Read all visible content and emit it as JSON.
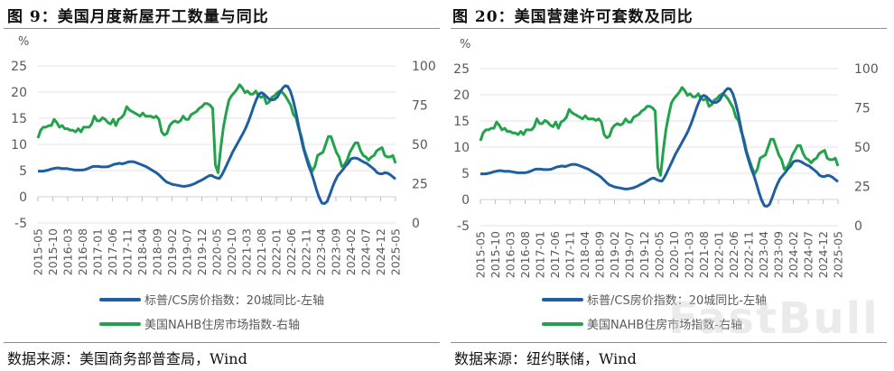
{
  "figures": [
    {
      "title": "图 9：美国月度新屋开工数量与同比",
      "source": "数据来源：美国商务部普查局，Wind"
    },
    {
      "title": "图 20：美国营建许可套数及同比",
      "source": "数据来源：纽约联储，Wind"
    }
  ],
  "legend": {
    "series_blue": "标普/CS房价指数：20城同比-左轴",
    "series_green": "美国NAHB住房市场指数-右轴"
  },
  "axes": {
    "left_unit": "%",
    "left_ticks": [
      "25",
      "20",
      "15",
      "10",
      "5",
      "0",
      "-5"
    ],
    "right_ticks": [
      "100",
      "75",
      "50",
      "25",
      "0"
    ],
    "x_ticks": [
      "2015-05",
      "2015-10",
      "2016-03",
      "2016-08",
      "2017-01",
      "2017-06",
      "2017-11",
      "2018-04",
      "2018-09",
      "2019-02",
      "2019-07",
      "2019-12",
      "2020-05",
      "2020-10",
      "2021-03",
      "2021-08",
      "2022-01",
      "2022-06",
      "2022-11",
      "2023-04",
      "2023-09",
      "2024-02",
      "2024-07",
      "2024-12",
      "2025-05"
    ]
  },
  "colors": {
    "blue": "#1f5fa0",
    "green": "#22a24a",
    "grid": "#e3e3e3",
    "tick_text": "#595959"
  },
  "watermark": "FastBull",
  "chart_data": [
    {
      "type": "line",
      "title": "图 9：美国月度新屋开工数量与同比",
      "xlabel": "",
      "ylabel": "%",
      "ylim": [
        -5,
        25
      ],
      "y2lim": [
        0,
        100
      ],
      "grid": true,
      "legend_position": "bottom",
      "categories": [
        "2015-05",
        "2015-10",
        "2016-03",
        "2016-08",
        "2017-01",
        "2017-06",
        "2017-11",
        "2018-04",
        "2018-09",
        "2019-02",
        "2019-07",
        "2019-12",
        "2020-05",
        "2020-10",
        "2021-03",
        "2021-08",
        "2022-01",
        "2022-06",
        "2022-11",
        "2023-04",
        "2023-09",
        "2024-02",
        "2024-07",
        "2024-12",
        "2025-05"
      ],
      "series": [
        {
          "name": "标普/CS房价指数：20城同比-左轴",
          "axis": "left",
          "values": [
            5.0,
            5.4,
            5.4,
            5.1,
            5.6,
            5.7,
            6.3,
            6.6,
            5.5,
            3.6,
            2.1,
            2.6,
            3.8,
            7.0,
            13.0,
            19.7,
            18.6,
            19.0,
            4.6,
            -1.1,
            3.9,
            6.6,
            5.9,
            4.5,
            3.4
          ]
        },
        {
          "name": "美国NAHB住房市场指数-右轴",
          "axis": "right",
          "values": [
            54,
            64,
            58,
            59,
            67,
            67,
            70,
            68,
            67,
            62,
            65,
            76,
            37,
            85,
            82,
            75,
            83,
            67,
            33,
            45,
            45,
            48,
            42,
            46,
            34
          ]
        }
      ]
    },
    {
      "type": "line",
      "title": "图 20：美国营建许可套数及同比",
      "xlabel": "",
      "ylabel": "%",
      "ylim": [
        -5,
        25
      ],
      "y2lim": [
        0,
        100
      ],
      "grid": true,
      "legend_position": "bottom",
      "categories": [
        "2015-05",
        "2015-10",
        "2016-03",
        "2016-08",
        "2017-01",
        "2017-06",
        "2017-11",
        "2018-04",
        "2018-09",
        "2019-02",
        "2019-07",
        "2019-12",
        "2020-05",
        "2020-10",
        "2021-03",
        "2021-08",
        "2022-01",
        "2022-06",
        "2022-11",
        "2023-04",
        "2023-09",
        "2024-02",
        "2024-07",
        "2024-12",
        "2025-05"
      ],
      "series": [
        {
          "name": "标普/CS房价指数：20城同比-左轴",
          "axis": "left",
          "values": [
            5.0,
            5.4,
            5.4,
            5.1,
            5.6,
            5.7,
            6.3,
            6.6,
            5.5,
            3.6,
            2.1,
            2.6,
            3.8,
            7.0,
            13.0,
            19.7,
            18.6,
            19.0,
            4.6,
            -1.1,
            3.9,
            6.6,
            5.9,
            4.5,
            3.4
          ]
        },
        {
          "name": "美国NAHB住房市场指数-右轴",
          "axis": "right",
          "values": [
            54,
            64,
            58,
            59,
            67,
            67,
            70,
            68,
            67,
            62,
            65,
            76,
            37,
            85,
            82,
            75,
            83,
            67,
            33,
            45,
            45,
            48,
            42,
            46,
            34
          ]
        }
      ]
    }
  ],
  "monthly": {
    "blue": [
      4.9,
      4.9,
      4.9,
      5.0,
      5.1,
      5.3,
      5.4,
      5.5,
      5.5,
      5.4,
      5.4,
      5.4,
      5.3,
      5.2,
      5.1,
      5.1,
      5.1,
      5.1,
      5.2,
      5.4,
      5.6,
      5.8,
      5.8,
      5.8,
      5.7,
      5.7,
      5.7,
      5.8,
      6.0,
      6.2,
      6.3,
      6.4,
      6.3,
      6.4,
      6.6,
      6.7,
      6.7,
      6.6,
      6.4,
      6.2,
      6.0,
      5.8,
      5.5,
      5.2,
      4.9,
      4.6,
      4.2,
      3.7,
      3.2,
      2.8,
      2.6,
      2.4,
      2.3,
      2.2,
      2.1,
      2.0,
      2.0,
      2.1,
      2.2,
      2.4,
      2.6,
      2.9,
      3.1,
      3.4,
      3.7,
      4.0,
      4.1,
      3.8,
      3.6,
      3.5,
      4.2,
      5.2,
      6.3,
      7.4,
      8.5,
      9.4,
      10.3,
      11.2,
      12.1,
      13.1,
      14.3,
      15.7,
      17.2,
      18.5,
      19.6,
      19.9,
      19.6,
      19.1,
      18.6,
      18.5,
      18.6,
      19.0,
      19.9,
      20.7,
      21.2,
      21.1,
      20.2,
      18.6,
      16.4,
      13.9,
      11.4,
      9.2,
      7.5,
      5.9,
      4.6,
      3.0,
      1.3,
      -0.2,
      -1.2,
      -1.3,
      -0.9,
      0.4,
      1.8,
      3.0,
      4.0,
      4.6,
      5.2,
      5.9,
      6.4,
      7.2,
      7.4,
      7.4,
      7.2,
      6.9,
      6.6,
      6.4,
      6.0,
      5.6,
      5.2,
      4.6,
      4.4,
      4.4,
      4.6,
      4.5,
      4.2,
      3.8,
      3.4
    ],
    "green": [
      54,
      59,
      61,
      61,
      62,
      62,
      66,
      64,
      61,
      62,
      60,
      60,
      59,
      59,
      58,
      60,
      58,
      61,
      61,
      61,
      63,
      68,
      65,
      65,
      67,
      66,
      64,
      63,
      66,
      62,
      66,
      67,
      69,
      74,
      72,
      71,
      70,
      69,
      68,
      70,
      68,
      68,
      68,
      67,
      68,
      66,
      58,
      56,
      57,
      62,
      64,
      65,
      64,
      65,
      68,
      66,
      66,
      69,
      70,
      71,
      73,
      74,
      76,
      76,
      75,
      73,
      37,
      32,
      48,
      61,
      70,
      78,
      81,
      83,
      85,
      88,
      86,
      83,
      84,
      82,
      82,
      84,
      81,
      80,
      81,
      76,
      77,
      80,
      81,
      83,
      84,
      83,
      81,
      78,
      75,
      69,
      67,
      60,
      55,
      47,
      42,
      37,
      33,
      36,
      43,
      44,
      45,
      50,
      55,
      55,
      50,
      45,
      42,
      36,
      37,
      40,
      45,
      48,
      51,
      51,
      46,
      43,
      42,
      40,
      42,
      43,
      46,
      47,
      48,
      43,
      42,
      42,
      43,
      38
    ]
  }
}
